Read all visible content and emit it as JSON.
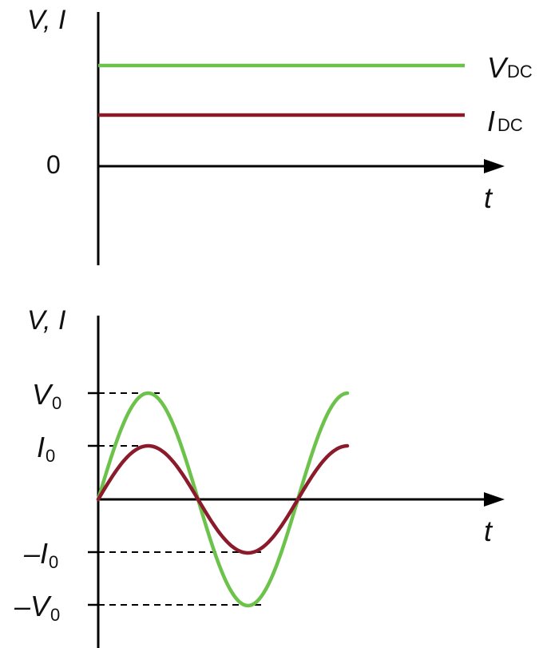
{
  "colors": {
    "voltage": "#6cc24a",
    "current": "#8b1a2b",
    "axis": "#000000",
    "background": "#ffffff"
  },
  "dc_graph": {
    "y_axis_label": "V, I",
    "x_axis_label": "t",
    "zero_label": "0",
    "voltage_label": {
      "main": "V",
      "sub": "DC"
    },
    "current_label": {
      "main": "I",
      "sub": "DC"
    }
  },
  "ac_graph": {
    "y_axis_label": "V, I",
    "x_axis_label": "t",
    "v0_label": {
      "main": "V",
      "sub": "0"
    },
    "i0_label": {
      "main": "I",
      "sub": "0"
    },
    "neg_i0_label": {
      "main": "–I",
      "sub": "0"
    },
    "neg_v0_label": {
      "main": "–V",
      "sub": "0"
    }
  },
  "chart_data": [
    {
      "type": "line",
      "x_label": "t",
      "y_label": "V, I",
      "series": [
        {
          "name": "VDC",
          "shape": "constant",
          "relative_level": 1.0
        },
        {
          "name": "IDC",
          "shape": "constant",
          "relative_level": 0.5
        }
      ]
    },
    {
      "type": "line",
      "x_label": "t",
      "y_label": "V, I",
      "series": [
        {
          "name": "V",
          "shape": "sine",
          "amplitude_label": "V0",
          "cycles": 1.25
        },
        {
          "name": "I",
          "shape": "sine",
          "amplitude_label": "I0",
          "cycles": 1.25
        }
      ]
    }
  ]
}
